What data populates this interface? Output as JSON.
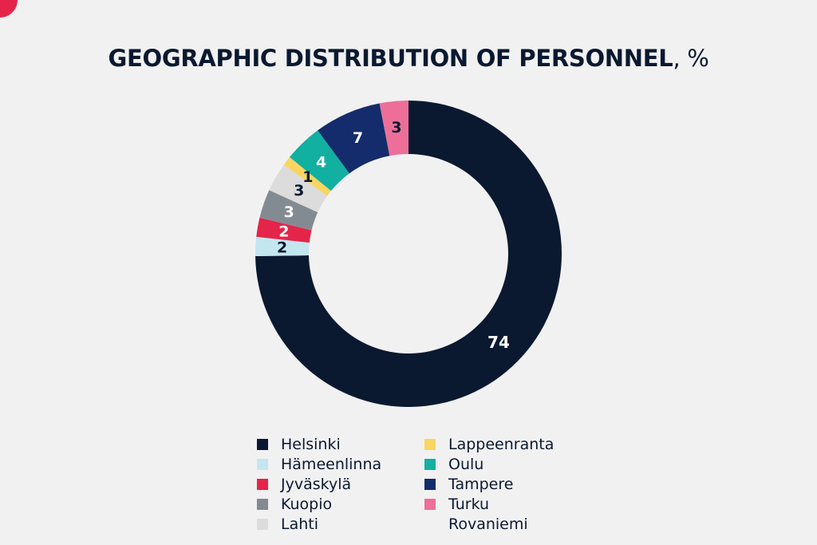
{
  "corner_accent_color": "#e5244a",
  "title": {
    "main": "GEOGRAPHIC DISTRIBUTION OF PERSONNEL",
    "unit": ", %"
  },
  "chart_data": {
    "type": "pie",
    "title": "GEOGRAPHIC DISTRIBUTION OF PERSONNEL, %",
    "donut": true,
    "legend_position": "bottom",
    "categories": [
      "Helsinki",
      "Hämeenlinna",
      "Jyväskylä",
      "Kuopio",
      "Lahti",
      "Lappeenranta",
      "Oulu",
      "Tampere",
      "Turku",
      "Rovaniemi"
    ],
    "values": [
      74,
      2,
      2,
      3,
      3,
      1,
      4,
      7,
      3,
      0
    ],
    "colors": [
      "#0a1930",
      "#c4e6ef",
      "#e5244a",
      "#838b92",
      "#dcdcdc",
      "#f8d661",
      "#12b0a0",
      "#142c6c",
      "#ed6f99",
      "#f1f1f2"
    ],
    "label_colors": [
      "#ffffff",
      "#0a1930",
      "#ffffff",
      "#ffffff",
      "#0a1930",
      "#0a1930",
      "#ffffff",
      "#ffffff",
      "#0a1930",
      "#0a1930"
    ],
    "slice_order_clockwise_from_top": [
      "Helsinki",
      "Hämeenlinna",
      "Jyväskylä",
      "Kuopio",
      "Lahti",
      "Lappeenranta",
      "Oulu",
      "Tampere",
      "Turku"
    ]
  }
}
